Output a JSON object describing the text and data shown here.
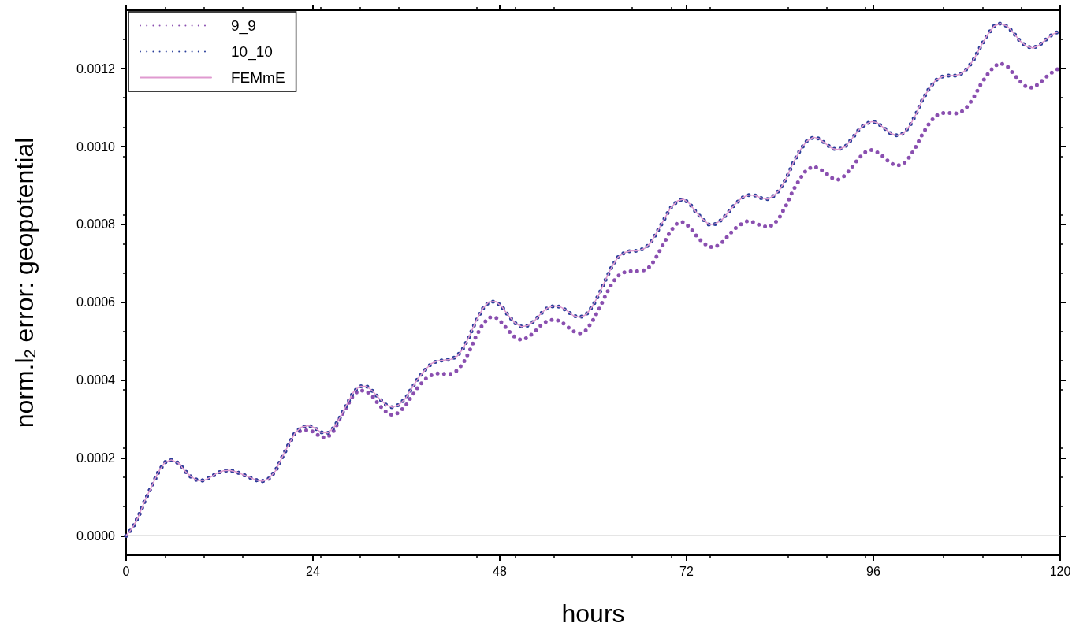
{
  "chart_data": {
    "type": "line",
    "xlabel": "hours",
    "ylabel": "norm.l$_{2}$ error: geopotential",
    "x": [
      0,
      0.8,
      1.6,
      2.4,
      3.3,
      4.2,
      5,
      5.8,
      6.7,
      7.5,
      8.3,
      9.2,
      10,
      10.8,
      11.7,
      12.5,
      13.3,
      14.2,
      15,
      15.9,
      16.7,
      17.5,
      18.3,
      19.2,
      20,
      20.9,
      21.7,
      22.5,
      23.4,
      24.2,
      25,
      25.9,
      26.7,
      27.5,
      28.4,
      29.2,
      30,
      30.9,
      31.7,
      32.5,
      33.4,
      34.2,
      35,
      35.9,
      36.7,
      37.5,
      38.4,
      39.2,
      40,
      40.9,
      41.7,
      42.5,
      43.3,
      44.1,
      44.9,
      45.8,
      46.6,
      47.5,
      48.3,
      49.1,
      50,
      50.8,
      51.6,
      52.5,
      53.3,
      54.1,
      55,
      55.8,
      56.6,
      57.4,
      58.3,
      59.1,
      59.9,
      60.8,
      61.6,
      62.4,
      63.2,
      64.1,
      64.9,
      65.7,
      66.6,
      67.4,
      68.2,
      69.1,
      69.9,
      70.8,
      71.6,
      72.4,
      73.2,
      74.1,
      74.9,
      75.7,
      76.6,
      77.4,
      78.2,
      79.1,
      79.9,
      80.7,
      81.5,
      82.4,
      83.2,
      84,
      84.9,
      85.7,
      86.6,
      87.4,
      88.3,
      89,
      89.9,
      90.7,
      91.5,
      92.4,
      93.2,
      94.1,
      94.9,
      95.8,
      96.5,
      97.4,
      98.2,
      99.1,
      99.9,
      100.7,
      101.5,
      102.3,
      103.2,
      104,
      104.9,
      105.7,
      106.5,
      107.3,
      108.2,
      109,
      109.8,
      110.7,
      111.5,
      112.3,
      113.2,
      114,
      114.8,
      115.7,
      116.5,
      117.3,
      118.1,
      119,
      119.7
    ],
    "series": [
      {
        "name": "9_9",
        "color": "#8a4fb0",
        "line_style": "dotted",
        "values": [
          0,
          2e-05,
          5e-05,
          9e-05,
          0.000128,
          0.000166,
          0.000189,
          0.000195,
          0.000187,
          0.000168,
          0.000152,
          0.000142,
          0.000142,
          0.00015,
          0.000161,
          0.000167,
          0.000168,
          0.000164,
          0.000157,
          0.00015,
          0.000143,
          0.00014,
          0.000146,
          0.000167,
          0.0002,
          0.000235,
          0.000264,
          0.00027,
          0.000272,
          0.000266,
          0.000253,
          0.000253,
          0.00027,
          0.000302,
          0.000334,
          0.000362,
          0.000374,
          0.000371,
          0.000357,
          0.000336,
          0.000318,
          0.00031,
          0.000316,
          0.000334,
          0.000359,
          0.000382,
          0.000402,
          0.000412,
          0.000417,
          0.000416,
          0.000416,
          0.000424,
          0.000443,
          0.000474,
          0.00051,
          0.000543,
          0.000561,
          0.000561,
          0.000547,
          0.000527,
          0.000509,
          0.000503,
          0.000509,
          0.000524,
          0.000541,
          0.000552,
          0.000556,
          0.000551,
          0.000539,
          0.000526,
          0.00052,
          0.000528,
          0.000551,
          0.000584,
          0.000618,
          0.000648,
          0.000668,
          0.000678,
          0.00068,
          0.00068,
          0.000682,
          0.000693,
          0.000719,
          0.000752,
          0.000782,
          0.000803,
          0.000806,
          0.000793,
          0.000772,
          0.000753,
          0.000742,
          0.000742,
          0.000754,
          0.000772,
          0.000789,
          0.000802,
          0.000809,
          0.000805,
          0.000797,
          0.000793,
          0.000799,
          0.00082,
          0.000853,
          0.000888,
          0.000918,
          0.00094,
          0.000949,
          0.000944,
          0.000932,
          0.000919,
          0.000915,
          0.000926,
          0.000946,
          0.000969,
          0.000985,
          0.000991,
          0.000985,
          0.000972,
          0.000957,
          0.000951,
          0.000956,
          0.000974,
          0.001001,
          0.001032,
          0.00106,
          0.001079,
          0.001086,
          0.001086,
          0.001084,
          0.001089,
          0.001105,
          0.00113,
          0.00116,
          0.001186,
          0.001206,
          0.001214,
          0.001206,
          0.001187,
          0.001168,
          0.001152,
          0.001151,
          0.001162,
          0.001177,
          0.001191,
          0.001199
        ]
      },
      {
        "name": "10_10",
        "color": "#2a3f9a",
        "line_style": "dotted",
        "values": [
          0,
          2e-05,
          5e-05,
          9e-05,
          0.000128,
          0.000166,
          0.000189,
          0.000195,
          0.000187,
          0.000168,
          0.000152,
          0.000142,
          0.000142,
          0.00015,
          0.000161,
          0.000167,
          0.000168,
          0.000164,
          0.000157,
          0.00015,
          0.000143,
          0.00014,
          0.000146,
          0.000167,
          0.0002,
          0.000235,
          0.000264,
          0.000279,
          0.000283,
          0.000278,
          0.000266,
          0.000264,
          0.000278,
          0.000305,
          0.000339,
          0.000369,
          0.000384,
          0.000384,
          0.000371,
          0.000353,
          0.000336,
          0.00033,
          0.000336,
          0.000353,
          0.000379,
          0.000404,
          0.000426,
          0.000442,
          0.000449,
          0.000451,
          0.000453,
          0.000461,
          0.000481,
          0.000513,
          0.00055,
          0.000583,
          0.000601,
          0.000602,
          0.000588,
          0.000566,
          0.000546,
          0.000537,
          0.00054,
          0.000553,
          0.000571,
          0.000585,
          0.000591,
          0.000588,
          0.000579,
          0.000566,
          0.000561,
          0.000568,
          0.000589,
          0.000622,
          0.000658,
          0.000691,
          0.000716,
          0.000728,
          0.000732,
          0.000732,
          0.000738,
          0.000753,
          0.00078,
          0.000812,
          0.000841,
          0.00086,
          0.000865,
          0.000853,
          0.000832,
          0.000813,
          0.000799,
          0.000801,
          0.000813,
          0.000832,
          0.000851,
          0.000868,
          0.000875,
          0.000875,
          0.000868,
          0.000865,
          0.000873,
          0.00089,
          0.000922,
          0.000958,
          0.000991,
          0.001013,
          0.001024,
          0.00102,
          0.001007,
          0.000995,
          0.000992,
          0.001,
          0.001019,
          0.001042,
          0.001057,
          0.001064,
          0.001061,
          0.001047,
          0.001034,
          0.001028,
          0.001034,
          0.001054,
          0.001084,
          0.00112,
          0.00115,
          0.00117,
          0.00118,
          0.001182,
          0.001182,
          0.001187,
          0.001203,
          0.001227,
          0.001258,
          0.001288,
          0.001309,
          0.001316,
          0.001309,
          0.001292,
          0.001272,
          0.001257,
          0.001253,
          0.00126,
          0.001274,
          0.001288,
          0.001294
        ]
      },
      {
        "name": "FEMmE",
        "color": "#e09ad0",
        "line_style": "solid",
        "values": [
          0,
          2e-05,
          5e-05,
          9e-05,
          0.000128,
          0.000166,
          0.000189,
          0.000195,
          0.000187,
          0.000168,
          0.000152,
          0.000142,
          0.000142,
          0.00015,
          0.000161,
          0.000167,
          0.000168,
          0.000164,
          0.000157,
          0.00015,
          0.000143,
          0.00014,
          0.000146,
          0.000167,
          0.0002,
          0.000235,
          0.000264,
          0.000279,
          0.000283,
          0.000278,
          0.000266,
          0.000264,
          0.000278,
          0.000305,
          0.000339,
          0.000369,
          0.000384,
          0.000384,
          0.000371,
          0.000353,
          0.000336,
          0.00033,
          0.000336,
          0.000353,
          0.000379,
          0.000404,
          0.000426,
          0.000442,
          0.000449,
          0.000451,
          0.000453,
          0.000461,
          0.000481,
          0.000513,
          0.00055,
          0.000583,
          0.000601,
          0.000602,
          0.000588,
          0.000566,
          0.000546,
          0.000537,
          0.00054,
          0.000553,
          0.000571,
          0.000585,
          0.000591,
          0.000588,
          0.000579,
          0.000566,
          0.000561,
          0.000568,
          0.000589,
          0.000622,
          0.000658,
          0.000691,
          0.000716,
          0.000728,
          0.000732,
          0.000732,
          0.000738,
          0.000753,
          0.00078,
          0.000812,
          0.000841,
          0.00086,
          0.000865,
          0.000853,
          0.000832,
          0.000813,
          0.000799,
          0.000801,
          0.000813,
          0.000832,
          0.000851,
          0.000868,
          0.000875,
          0.000875,
          0.000868,
          0.000865,
          0.000873,
          0.00089,
          0.000922,
          0.000958,
          0.000991,
          0.001013,
          0.001024,
          0.00102,
          0.001007,
          0.000995,
          0.000992,
          0.001,
          0.001019,
          0.001042,
          0.001057,
          0.001064,
          0.001061,
          0.001047,
          0.001034,
          0.001028,
          0.001034,
          0.001054,
          0.001084,
          0.00112,
          0.00115,
          0.00117,
          0.00118,
          0.001182,
          0.001182,
          0.001187,
          0.001203,
          0.001227,
          0.001258,
          0.001288,
          0.001309,
          0.001316,
          0.001309,
          0.001292,
          0.001272,
          0.001257,
          0.001253,
          0.00126,
          0.001274,
          0.001288,
          0.001294
        ]
      }
    ],
    "xlim": [
      0,
      120
    ],
    "xticks": [
      0,
      24,
      48,
      72,
      96,
      120
    ],
    "ylim": [
      -5e-05,
      0.00135
    ],
    "yticks": [
      {
        "value": 0,
        "label": "0.0000"
      },
      {
        "value": 0.0002,
        "label": "0.0002"
      },
      {
        "value": 0.0004,
        "label": "0.0004"
      },
      {
        "value": 0.0006,
        "label": "0.0006"
      },
      {
        "value": 0.0008,
        "label": "0.0008"
      },
      {
        "value": 0.001,
        "label": "0.0010"
      },
      {
        "value": 0.0012,
        "label": "0.0012"
      }
    ],
    "ref_lines": [
      {
        "axis": "y",
        "value": 0,
        "label": null,
        "color": "#cccccc"
      }
    ],
    "grid": false,
    "legend": "top left",
    "marker": "none"
  }
}
